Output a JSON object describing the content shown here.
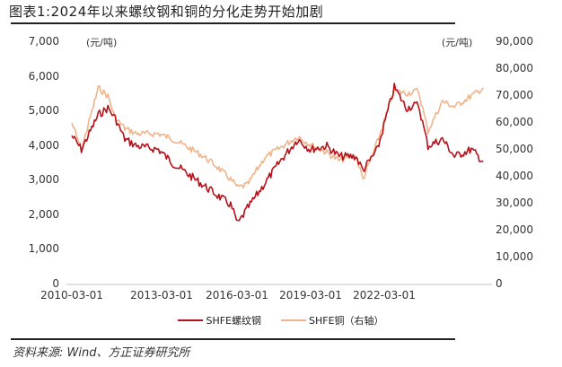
{
  "title": "图表1:2024年以来螺纹钢和铜的分化走势开始加剧",
  "source": "资料来源: Wind、方正证券研究所",
  "colors": {
    "rebar": "#b5121b",
    "copper": "#f0b48c",
    "axis": "#d9d9d9"
  },
  "chart_data": {
    "type": "line",
    "title": "图表1:2024年以来螺纹钢和铜的分化走势开始加剧",
    "left_axis": {
      "unit": "(元/吨)",
      "ticks": [
        "0",
        "1,000",
        "2,000",
        "3,000",
        "4,000",
        "5,000",
        "6,000",
        "7,000"
      ],
      "ylim": [
        0,
        7000
      ]
    },
    "right_axis": {
      "unit": "(元/吨)",
      "ticks": [
        "0",
        "10,000",
        "20,000",
        "30,000",
        "40,000",
        "50,000",
        "60,000",
        "70,000",
        "80,000",
        "90,000"
      ],
      "ylim": [
        0,
        90000
      ]
    },
    "x_ticks": [
      "2010-03-01",
      "2013-03-01",
      "2016-03-01",
      "2019-03-01",
      "2022-03-01"
    ],
    "legend": [
      "SHFE螺纹钢",
      "SHFE铜（右轴）"
    ],
    "legend_position": "bottom",
    "grid": false,
    "x": [
      "2010-03",
      "2010-07",
      "2011-02",
      "2011-06",
      "2011-09",
      "2012-01",
      "2012-06",
      "2013-03",
      "2013-09",
      "2014-03",
      "2014-09",
      "2015-03",
      "2015-09",
      "2015-12",
      "2016-04",
      "2016-11",
      "2017-06",
      "2018-01",
      "2018-06",
      "2019-01",
      "2019-06",
      "2020-01",
      "2020-04",
      "2020-10",
      "2021-05",
      "2021-10",
      "2022-03",
      "2022-07",
      "2023-01",
      "2023-06",
      "2024-01",
      "2024-06"
    ],
    "series": [
      {
        "name": "SHFE螺纹钢",
        "axis": "left",
        "values": [
          4300,
          3900,
          4900,
          5100,
          4800,
          4200,
          4000,
          3900,
          3500,
          3200,
          2900,
          2600,
          2300,
          1750,
          2200,
          2900,
          3600,
          4200,
          3900,
          4000,
          3700,
          3700,
          3300,
          3900,
          5700,
          5100,
          5200,
          4000,
          4200,
          3700,
          3900,
          3550
        ]
      },
      {
        "name": "SHFE铜（右轴）",
        "axis": "right",
        "values": [
          60000,
          50000,
          73000,
          70000,
          62000,
          58000,
          56000,
          56000,
          54000,
          51000,
          48000,
          44000,
          39000,
          36000,
          37000,
          47000,
          51000,
          55000,
          52000,
          49000,
          46000,
          48000,
          39000,
          53000,
          72000,
          71000,
          72000,
          57000,
          68000,
          66000,
          70000,
          73000
        ]
      }
    ]
  }
}
